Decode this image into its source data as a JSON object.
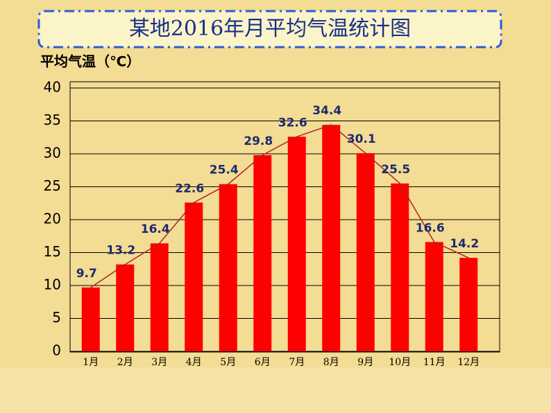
{
  "chart_data": {
    "type": "bar",
    "title": "某地2016年月平均气温统计图",
    "y_label": "平均气温（℃）",
    "categories": [
      "1月",
      "2月",
      "3月",
      "4月",
      "5月",
      "6月",
      "7月",
      "8月",
      "9月",
      "10月",
      "11月",
      "12月"
    ],
    "values": [
      9.7,
      13.2,
      16.4,
      22.6,
      25.4,
      29.8,
      32.6,
      34.4,
      30.1,
      25.5,
      16.6,
      14.2
    ],
    "color": "#ff0000",
    "line_color": "#b22222",
    "ylim": [
      0,
      40
    ],
    "yticks": [
      0,
      5,
      10,
      15,
      20,
      25,
      30,
      35,
      40
    ],
    "grid": true
  }
}
